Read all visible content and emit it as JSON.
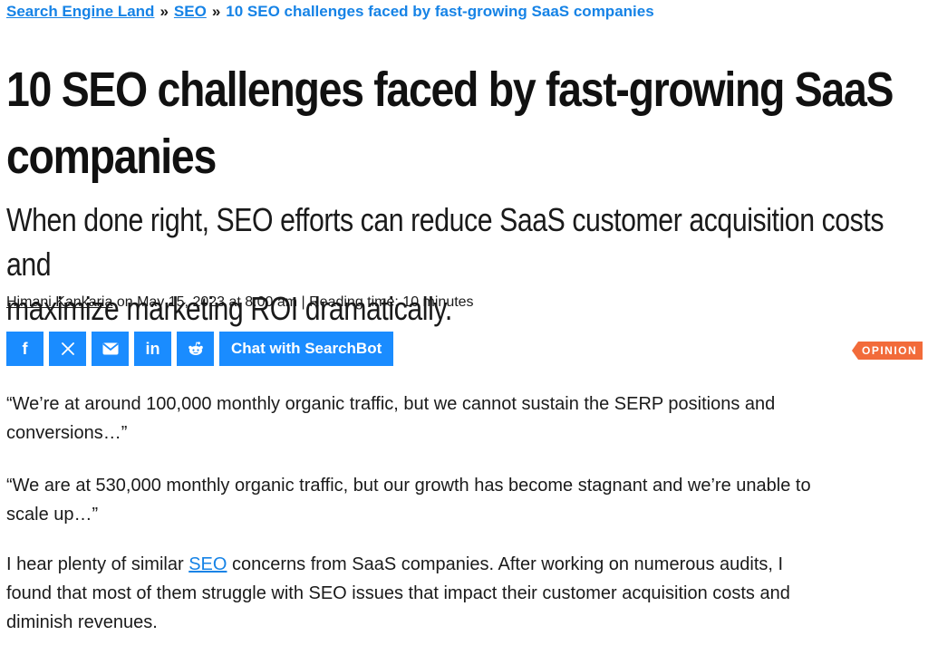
{
  "breadcrumb": {
    "home": "Search Engine Land",
    "separator": "»",
    "category": "SEO",
    "current": "10 SEO challenges faced by fast-growing SaaS companies"
  },
  "article": {
    "title_line1": "10 SEO challenges faced by fast-growing SaaS",
    "title_line2": "companies",
    "subtitle_line1": "When done right, SEO efforts can reduce SaaS customer acquisition costs and",
    "subtitle_line2": "maximize marketing ROI dramatically.",
    "author": "Himani Kankaria",
    "date_text": " on May 15, 2023 at 8:00 am | Reading time: 10 minutes",
    "badge": "OPINION"
  },
  "share": {
    "facebook_glyph": "f",
    "x_glyph": "𝕏",
    "email_icon": "envelope-icon",
    "linkedin_glyph": "in",
    "reddit_icon": "reddit-icon",
    "chat_label": "Chat with SearchBot",
    "color": "#1a8cff"
  },
  "body": {
    "p1_line1": "“We’re at around 100,000 monthly organic traffic, but we cannot sustain the SERP positions and",
    "p1_line2": "conversions…”",
    "p2_line1": "“We are at 530,000 monthly organic traffic, but our growth has become stagnant and we’re unable to",
    "p2_line2": "scale up…”",
    "p3_before_link": "I hear plenty of similar ",
    "p3_link": "SEO",
    "p3_after_link": " concerns from SaaS companies. After working on numerous audits, I",
    "p3_line2": "found that most of them struggle with SEO issues that impact their customer acquisition costs and",
    "p3_line3": "diminish revenues."
  },
  "colors": {
    "link": "#1683e6",
    "badge": "#f26b3a"
  }
}
